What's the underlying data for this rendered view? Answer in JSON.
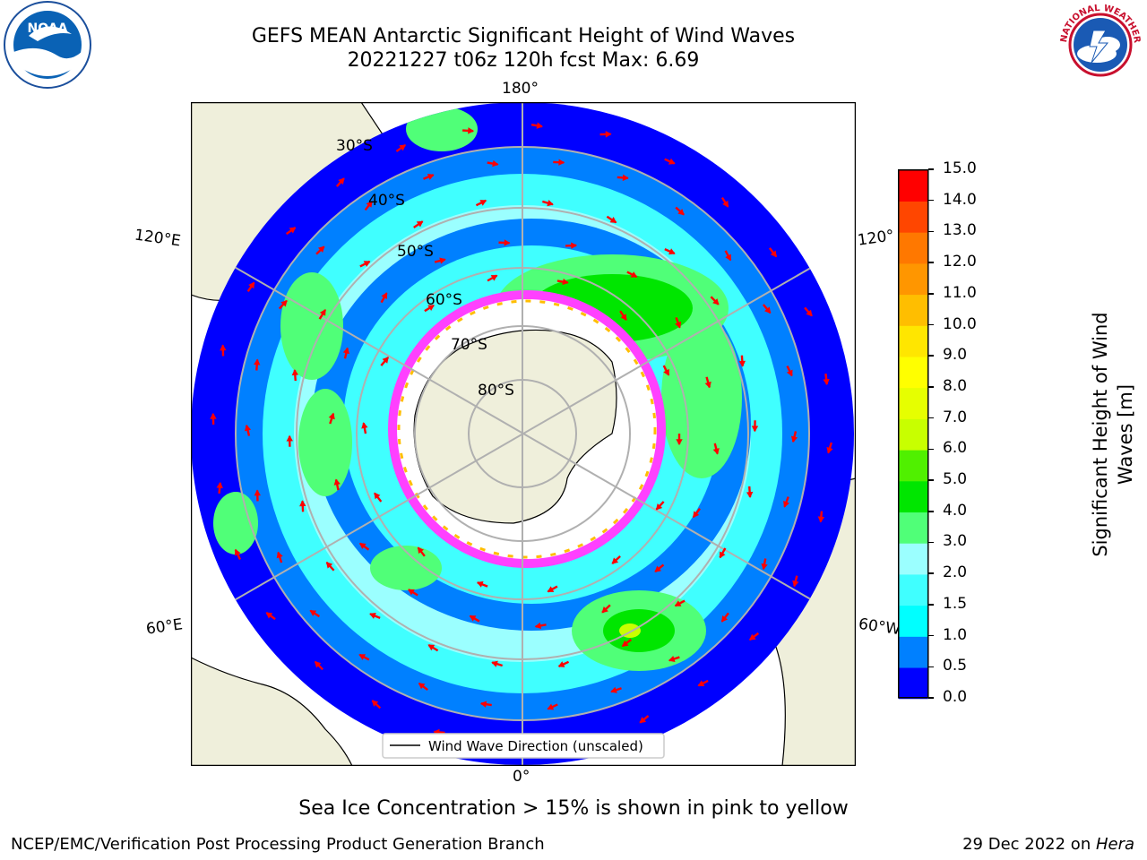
{
  "header": {
    "title_line1": "GEFS MEAN Antarctic Significant Height of Wind Waves",
    "title_line2": "20221227 t06z 120h fcst   Max: 6.69"
  },
  "map": {
    "projection": "south-polar-stereographic",
    "lon_labels": {
      "top": "180°",
      "bottom": "0°",
      "left_upper": "120°E",
      "left_lower": "60°E",
      "right_upper": "120°",
      "right_lower": "60°W"
    },
    "lat_labels": [
      "30°S",
      "40°S",
      "50°S",
      "60°S",
      "70°S",
      "80°S"
    ],
    "legend_label": "Wind Wave Direction (unscaled)",
    "vector_color": "#ff0000",
    "land_color": "#efefdb"
  },
  "colorbar": {
    "label_line1": "Significant Height of Wind",
    "label_line2": "Waves [m]",
    "ticks": [
      "0.0",
      "0.5",
      "1.0",
      "1.5",
      "2.0",
      "3.0",
      "4.0",
      "5.0",
      "6.0",
      "7.0",
      "8.0",
      "9.0",
      "10.0",
      "11.0",
      "12.0",
      "13.0",
      "14.0",
      "15.0"
    ],
    "colors": [
      "#0000ff",
      "#0080ff",
      "#00ffff",
      "#40ffff",
      "#9bffff",
      "#50ff78",
      "#00e600",
      "#50f000",
      "#c8ff00",
      "#e6ff00",
      "#ffff00",
      "#ffe600",
      "#ffbe00",
      "#ff9600",
      "#ff7800",
      "#ff4600",
      "#ff0000"
    ]
  },
  "ice_note": "Sea Ice Concentration > 15% is shown in pink to yellow",
  "footer": {
    "left": "NCEP/EMC/Verification Post Processing Product Generation Branch",
    "right_date": "29 Dec 2022 on ",
    "right_host": "Hera"
  },
  "logos": {
    "left": "NOAA",
    "right": "NATIONAL WEATHER SERVICE"
  }
}
